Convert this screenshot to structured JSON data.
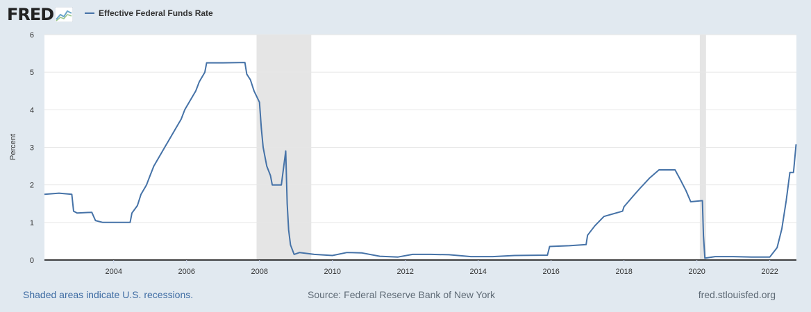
{
  "header": {
    "logo_text": "FRED",
    "legend_label": "Effective Federal Funds Rate",
    "series_color": "#4572a7"
  },
  "footer": {
    "recession_note": "Shaded areas indicate U.S. recessions.",
    "source": "Source: Federal Reserve Bank of New York",
    "site": "fred.stlouisfed.org"
  },
  "chart_data": {
    "type": "line",
    "ylabel": "Percent",
    "ylim": [
      0,
      6
    ],
    "xlim": [
      2002.1,
      2022.73
    ],
    "y_ticks": [
      "0",
      "1",
      "2",
      "3",
      "4",
      "5",
      "6"
    ],
    "x_ticks": [
      "2004",
      "2006",
      "2008",
      "2010",
      "2012",
      "2014",
      "2016",
      "2018",
      "2020",
      "2022"
    ],
    "grid": true,
    "legend": "top-left",
    "recessions": [
      [
        2007.92,
        2009.42
      ],
      [
        2020.08,
        2020.25
      ]
    ],
    "series": [
      {
        "name": "Effective Federal Funds Rate",
        "points": [
          [
            2002.1,
            1.75
          ],
          [
            2002.5,
            1.78
          ],
          [
            2002.85,
            1.75
          ],
          [
            2002.9,
            1.3
          ],
          [
            2003.0,
            1.25
          ],
          [
            2003.4,
            1.27
          ],
          [
            2003.5,
            1.05
          ],
          [
            2003.7,
            1.0
          ],
          [
            2004.0,
            1.0
          ],
          [
            2004.45,
            1.0
          ],
          [
            2004.5,
            1.25
          ],
          [
            2004.65,
            1.45
          ],
          [
            2004.75,
            1.75
          ],
          [
            2004.9,
            2.0
          ],
          [
            2005.0,
            2.25
          ],
          [
            2005.1,
            2.5
          ],
          [
            2005.25,
            2.75
          ],
          [
            2005.4,
            3.0
          ],
          [
            2005.55,
            3.25
          ],
          [
            2005.7,
            3.5
          ],
          [
            2005.85,
            3.75
          ],
          [
            2005.95,
            4.0
          ],
          [
            2006.1,
            4.25
          ],
          [
            2006.25,
            4.5
          ],
          [
            2006.35,
            4.75
          ],
          [
            2006.5,
            5.0
          ],
          [
            2006.55,
            5.25
          ],
          [
            2007.0,
            5.25
          ],
          [
            2007.6,
            5.26
          ],
          [
            2007.65,
            4.95
          ],
          [
            2007.75,
            4.8
          ],
          [
            2007.85,
            4.5
          ],
          [
            2008.0,
            4.2
          ],
          [
            2008.05,
            3.5
          ],
          [
            2008.1,
            3.0
          ],
          [
            2008.2,
            2.5
          ],
          [
            2008.3,
            2.25
          ],
          [
            2008.35,
            2.0
          ],
          [
            2008.6,
            2.0
          ],
          [
            2008.72,
            2.9
          ],
          [
            2008.76,
            1.5
          ],
          [
            2008.8,
            0.8
          ],
          [
            2008.85,
            0.4
          ],
          [
            2008.95,
            0.15
          ],
          [
            2009.1,
            0.2
          ],
          [
            2009.5,
            0.15
          ],
          [
            2010.0,
            0.12
          ],
          [
            2010.4,
            0.2
          ],
          [
            2010.8,
            0.19
          ],
          [
            2011.3,
            0.1
          ],
          [
            2011.8,
            0.08
          ],
          [
            2012.2,
            0.15
          ],
          [
            2012.7,
            0.15
          ],
          [
            2013.2,
            0.14
          ],
          [
            2013.8,
            0.09
          ],
          [
            2014.4,
            0.09
          ],
          [
            2015.0,
            0.12
          ],
          [
            2015.9,
            0.13
          ],
          [
            2015.96,
            0.36
          ],
          [
            2016.5,
            0.38
          ],
          [
            2016.96,
            0.41
          ],
          [
            2017.0,
            0.66
          ],
          [
            2017.2,
            0.91
          ],
          [
            2017.45,
            1.16
          ],
          [
            2017.96,
            1.3
          ],
          [
            2018.0,
            1.42
          ],
          [
            2018.25,
            1.7
          ],
          [
            2018.45,
            1.92
          ],
          [
            2018.7,
            2.18
          ],
          [
            2018.96,
            2.4
          ],
          [
            2019.4,
            2.4
          ],
          [
            2019.55,
            2.13
          ],
          [
            2019.7,
            1.85
          ],
          [
            2019.83,
            1.55
          ],
          [
            2020.15,
            1.58
          ],
          [
            2020.18,
            0.65
          ],
          [
            2020.22,
            0.05
          ],
          [
            2020.5,
            0.09
          ],
          [
            2021.0,
            0.09
          ],
          [
            2021.5,
            0.08
          ],
          [
            2022.0,
            0.08
          ],
          [
            2022.2,
            0.33
          ],
          [
            2022.33,
            0.83
          ],
          [
            2022.45,
            1.58
          ],
          [
            2022.55,
            2.33
          ],
          [
            2022.65,
            2.33
          ],
          [
            2022.72,
            3.08
          ]
        ]
      }
    ]
  }
}
